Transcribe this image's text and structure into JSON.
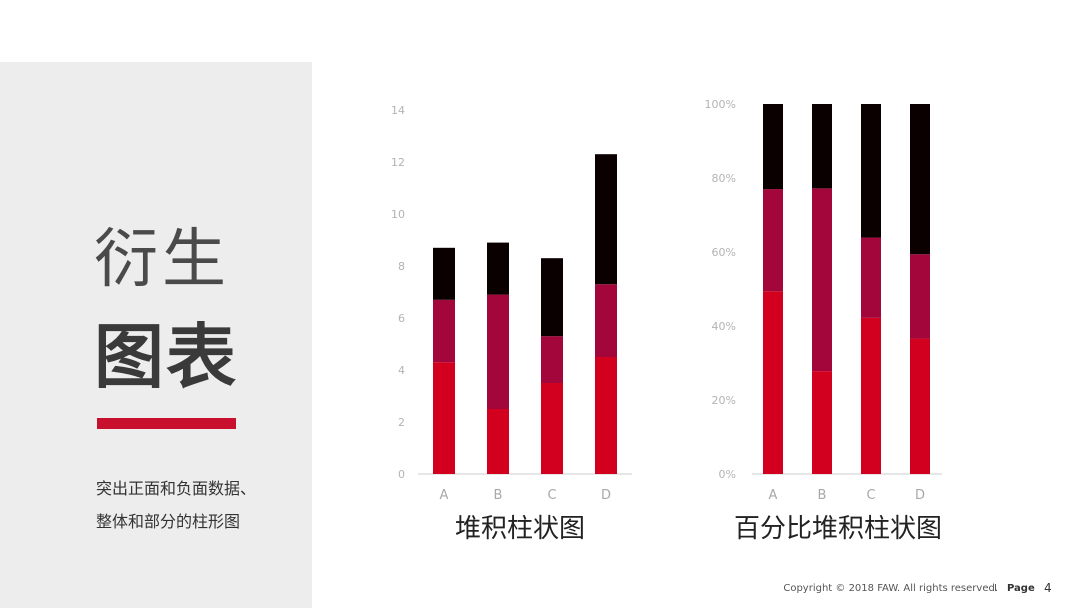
{
  "left": {
    "title_line1": "衍生",
    "title_line2": "图表",
    "desc_line1": "突出正面和负面数据、",
    "desc_line2": "整体和部分的柱形图",
    "accent_color": "#c8102e"
  },
  "colors": {
    "series_bottom": "#d2001e",
    "series_middle": "#a3063b",
    "series_top": "#0a0000"
  },
  "chart_data": [
    {
      "type": "bar",
      "stacked": true,
      "title": "堆积柱状图",
      "categories": [
        "A",
        "B",
        "C",
        "D"
      ],
      "series": [
        {
          "values": [
            4.3,
            2.5,
            3.5,
            4.5
          ]
        },
        {
          "values": [
            2.4,
            4.4,
            1.8,
            2.8
          ]
        },
        {
          "values": [
            2.0,
            2.0,
            3.0,
            5.0
          ]
        }
      ],
      "ylim": [
        0,
        14
      ],
      "yticks": [
        "0",
        "2",
        "4",
        "6",
        "8",
        "10",
        "12",
        "14"
      ],
      "grid": false
    },
    {
      "type": "bar",
      "stacked": true,
      "percent": true,
      "title": "百分比堆积柱状图",
      "categories": [
        "A",
        "B",
        "C",
        "D"
      ],
      "series": [
        {
          "values": [
            49.4,
            27.8,
            42.2,
            36.6
          ]
        },
        {
          "values": [
            27.6,
            49.4,
            21.7,
            22.8
          ]
        },
        {
          "values": [
            23.0,
            22.8,
            36.1,
            40.6
          ]
        }
      ],
      "ylim": [
        0,
        100
      ],
      "yticks": [
        "0%",
        "20%",
        "40%",
        "60%",
        "80%",
        "100%"
      ],
      "grid": false
    }
  ],
  "footer": {
    "copyright": "Copyright © 2018 FAW. All rights reserved.",
    "separator": "I",
    "page_label": "Page",
    "page_number": "4"
  }
}
